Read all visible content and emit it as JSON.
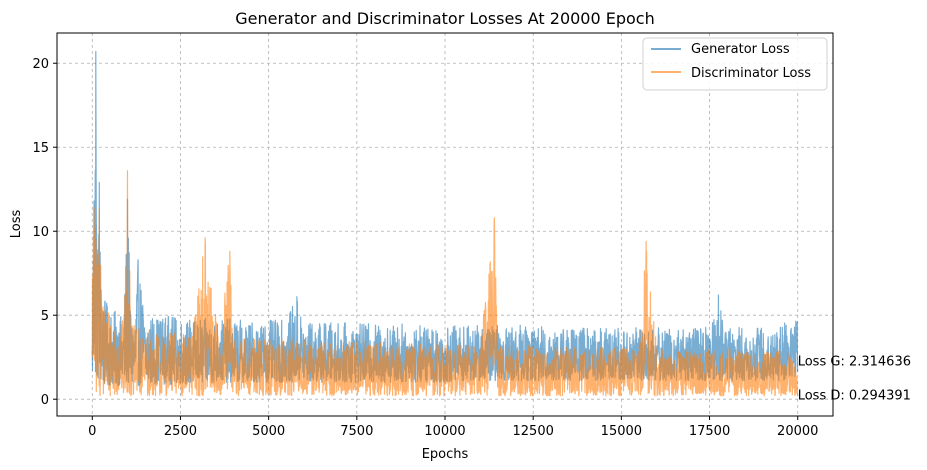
{
  "chart_data": {
    "type": "line",
    "title": "Generator and Discriminator Losses At 20000 Epoch",
    "xlabel": "Epochs",
    "ylabel": "Loss",
    "xlim": [
      -1000,
      21000
    ],
    "ylim": [
      -1.0,
      21.8
    ],
    "xticks": [
      0,
      2500,
      5000,
      7500,
      10000,
      12500,
      15000,
      17500,
      20000
    ],
    "yticks": [
      0,
      5,
      10,
      15,
      20
    ],
    "grid": true,
    "legend_position": "top-right",
    "series": [
      {
        "name": "Generator Loss",
        "color": "#1f77b4",
        "x": [
          0,
          50,
          100,
          150,
          200,
          250,
          300,
          400,
          500,
          600,
          700,
          800,
          900,
          1000,
          1100,
          1200,
          1300,
          1500,
          1700,
          1900,
          2200,
          2500,
          2800,
          3200,
          3600,
          4000,
          4500,
          5000,
          5500,
          5800,
          6000,
          6500,
          7000,
          7500,
          8000,
          8500,
          9000,
          9500,
          10000,
          10500,
          11000,
          11500,
          12000,
          12500,
          13000,
          13500,
          14000,
          14500,
          15000,
          15500,
          16000,
          16500,
          17000,
          17500,
          17750,
          18000,
          18500,
          19000,
          19500,
          20000
        ],
        "y": [
          3.0,
          11.8,
          20.7,
          8.0,
          12.9,
          6.5,
          5.2,
          4.5,
          4.2,
          4.0,
          3.8,
          3.6,
          3.6,
          11.9,
          3.5,
          3.4,
          8.3,
          3.3,
          3.3,
          3.2,
          3.2,
          3.1,
          3.1,
          3.1,
          3.0,
          3.0,
          3.0,
          3.0,
          3.0,
          6.1,
          3.0,
          3.0,
          3.0,
          3.0,
          3.0,
          3.0,
          3.0,
          3.0,
          3.0,
          3.0,
          3.0,
          3.0,
          3.0,
          3.0,
          3.0,
          3.0,
          3.0,
          3.0,
          3.0,
          3.0,
          3.0,
          3.0,
          3.0,
          3.0,
          6.2,
          3.0,
          3.0,
          3.0,
          3.0,
          2.314636
        ],
        "band_low": [
          0.5,
          1.0,
          1.2,
          1.0,
          1.0,
          0.9,
          0.8,
          0.8,
          0.8,
          0.8,
          0.8,
          0.8,
          0.8,
          0.8,
          0.8,
          0.8,
          0.8,
          0.9,
          0.9,
          0.9,
          0.9,
          0.9,
          0.9,
          0.9,
          1.0,
          1.0,
          1.0,
          1.0,
          1.0,
          1.0,
          1.0,
          1.0,
          1.0,
          1.0,
          1.0,
          1.0,
          1.0,
          1.0,
          1.0,
          1.1,
          1.1,
          1.1,
          1.1,
          1.1,
          1.1,
          1.1,
          1.1,
          1.1,
          1.1,
          1.1,
          1.1,
          1.1,
          1.1,
          1.1,
          1.1,
          1.1,
          1.1,
          1.1,
          1.1,
          1.1
        ],
        "band_high": [
          9.0,
          11.8,
          20.7,
          8.0,
          12.9,
          6.5,
          6.0,
          5.8,
          5.5,
          5.3,
          5.2,
          5.0,
          5.0,
          11.9,
          5.0,
          5.0,
          8.3,
          5.0,
          5.0,
          5.0,
          5.0,
          4.8,
          4.8,
          4.8,
          4.8,
          4.8,
          4.7,
          4.7,
          4.7,
          6.1,
          4.6,
          4.6,
          4.6,
          4.5,
          4.5,
          4.5,
          4.5,
          4.4,
          4.4,
          4.4,
          4.4,
          4.4,
          4.4,
          4.4,
          4.3,
          4.3,
          4.3,
          4.3,
          4.3,
          4.3,
          4.3,
          4.3,
          4.3,
          4.3,
          6.2,
          4.3,
          4.3,
          4.3,
          4.3,
          5.6
        ]
      },
      {
        "name": "Discriminator Loss",
        "color": "#ff7f0e",
        "x": [
          0,
          50,
          100,
          150,
          200,
          250,
          300,
          400,
          500,
          600,
          700,
          800,
          900,
          1000,
          1100,
          1200,
          1300,
          1500,
          1700,
          1900,
          2200,
          2500,
          2800,
          3200,
          3600,
          3900,
          4000,
          4500,
          5000,
          5500,
          6000,
          6500,
          7000,
          7500,
          8000,
          8500,
          9000,
          9500,
          10000,
          10500,
          11000,
          11400,
          11500,
          12000,
          12500,
          13000,
          13500,
          14000,
          14500,
          15000,
          15500,
          15700,
          16000,
          16500,
          17000,
          17500,
          18000,
          18500,
          19000,
          19500,
          20000
        ],
        "y": [
          2.5,
          11.4,
          9.5,
          8.5,
          11.3,
          6.0,
          5.5,
          4.5,
          3.5,
          3.2,
          3.0,
          2.8,
          2.6,
          13.6,
          2.4,
          2.3,
          2.2,
          2.0,
          2.0,
          1.9,
          1.8,
          1.7,
          1.6,
          9.6,
          1.6,
          8.8,
          1.5,
          1.5,
          1.5,
          1.5,
          1.4,
          1.4,
          1.4,
          1.4,
          1.4,
          1.3,
          1.3,
          1.3,
          1.3,
          1.3,
          1.3,
          10.8,
          1.3,
          1.2,
          1.2,
          1.2,
          1.2,
          1.2,
          1.2,
          1.2,
          1.2,
          9.4,
          1.2,
          1.1,
          1.1,
          1.1,
          1.1,
          1.1,
          1.0,
          1.0,
          0.294391
        ],
        "band_low": [
          0.2,
          0.3,
          0.3,
          0.2,
          0.2,
          0.2,
          0.2,
          0.2,
          0.2,
          0.2,
          0.2,
          0.2,
          0.2,
          0.2,
          0.2,
          0.2,
          0.2,
          0.2,
          0.2,
          0.2,
          0.2,
          0.2,
          0.2,
          0.2,
          0.2,
          0.2,
          0.2,
          0.2,
          0.2,
          0.2,
          0.2,
          0.2,
          0.2,
          0.2,
          0.2,
          0.2,
          0.2,
          0.2,
          0.2,
          0.2,
          0.2,
          0.2,
          0.2,
          0.2,
          0.2,
          0.2,
          0.2,
          0.2,
          0.2,
          0.2,
          0.2,
          0.2,
          0.2,
          0.2,
          0.2,
          0.2,
          0.2,
          0.2,
          0.2,
          0.2,
          0.2
        ],
        "band_high": [
          9.0,
          11.4,
          9.5,
          8.5,
          11.3,
          7.0,
          6.5,
          6.0,
          5.5,
          5.0,
          5.0,
          4.8,
          4.6,
          13.6,
          4.5,
          4.4,
          4.3,
          4.2,
          4.2,
          4.0,
          4.0,
          4.0,
          3.8,
          9.6,
          3.8,
          8.8,
          3.8,
          3.7,
          3.7,
          3.6,
          3.6,
          3.5,
          3.5,
          3.5,
          3.4,
          3.4,
          3.4,
          3.3,
          3.3,
          3.3,
          3.3,
          10.8,
          3.3,
          3.2,
          3.2,
          3.2,
          3.2,
          3.1,
          3.1,
          3.1,
          3.1,
          9.4,
          3.1,
          3.0,
          3.0,
          3.0,
          3.0,
          3.0,
          2.9,
          2.9,
          2.9
        ]
      }
    ],
    "annotations": [
      {
        "text": "Loss G: 2.314636",
        "x": 20000,
        "y": 2.314636
      },
      {
        "text": "Loss D: 0.294391",
        "x": 20000,
        "y": 0.294391
      }
    ]
  }
}
